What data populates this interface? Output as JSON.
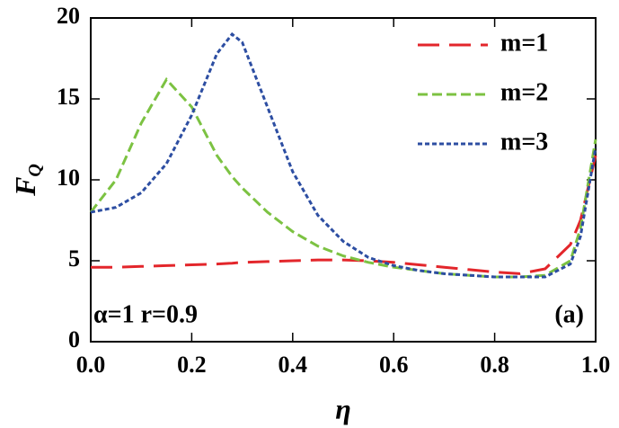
{
  "chart_data": {
    "type": "line",
    "xlabel": "η",
    "ylabel": "F",
    "ylabel_subscript": "Q",
    "annotations": [
      "α=1  r=0.9",
      "(a)"
    ],
    "x": [
      0,
      0.05,
      0.1,
      0.15,
      0.2,
      0.25,
      0.28,
      0.3,
      0.35,
      0.4,
      0.45,
      0.5,
      0.55,
      0.6,
      0.65,
      0.7,
      0.75,
      0.8,
      0.85,
      0.9,
      0.95,
      0.97,
      1.0
    ],
    "series": [
      {
        "name": "m=1",
        "color": "#e3262b",
        "dash": "24,11",
        "values": [
          4.6,
          4.6,
          4.65,
          4.7,
          4.75,
          4.8,
          4.85,
          4.9,
          4.95,
          5.0,
          5.05,
          5.05,
          5.0,
          4.9,
          4.75,
          4.6,
          4.45,
          4.3,
          4.2,
          4.5,
          6.0,
          7.5,
          11.5
        ]
      },
      {
        "name": "m=2",
        "color": "#7cc242",
        "dash": "11,5",
        "values": [
          8,
          10,
          13.5,
          16.2,
          14.5,
          11.5,
          10.2,
          9.5,
          8,
          6.8,
          5.9,
          5.3,
          4.9,
          4.6,
          4.4,
          4.2,
          4.1,
          4.0,
          4.0,
          4.1,
          5,
          7,
          12.5
        ]
      },
      {
        "name": "m=3",
        "color": "#2d4ea2",
        "dash": "5,3",
        "values": [
          8,
          8.3,
          9.2,
          11,
          14,
          17.8,
          19,
          18.5,
          14.5,
          10.5,
          7.8,
          6.2,
          5.2,
          4.7,
          4.4,
          4.2,
          4.1,
          4.0,
          4.0,
          4.0,
          4.8,
          6.5,
          12
        ]
      }
    ],
    "xlim": [
      0,
      1
    ],
    "ylim": [
      0,
      20
    ],
    "xticks": [
      {
        "value": 0,
        "label": "0.0"
      },
      0.2,
      0.4,
      0.6,
      0.8,
      {
        "value": 1,
        "label": "1.0"
      }
    ],
    "yticks": [
      0,
      5,
      10,
      15,
      20
    ],
    "legend": "upper right"
  }
}
